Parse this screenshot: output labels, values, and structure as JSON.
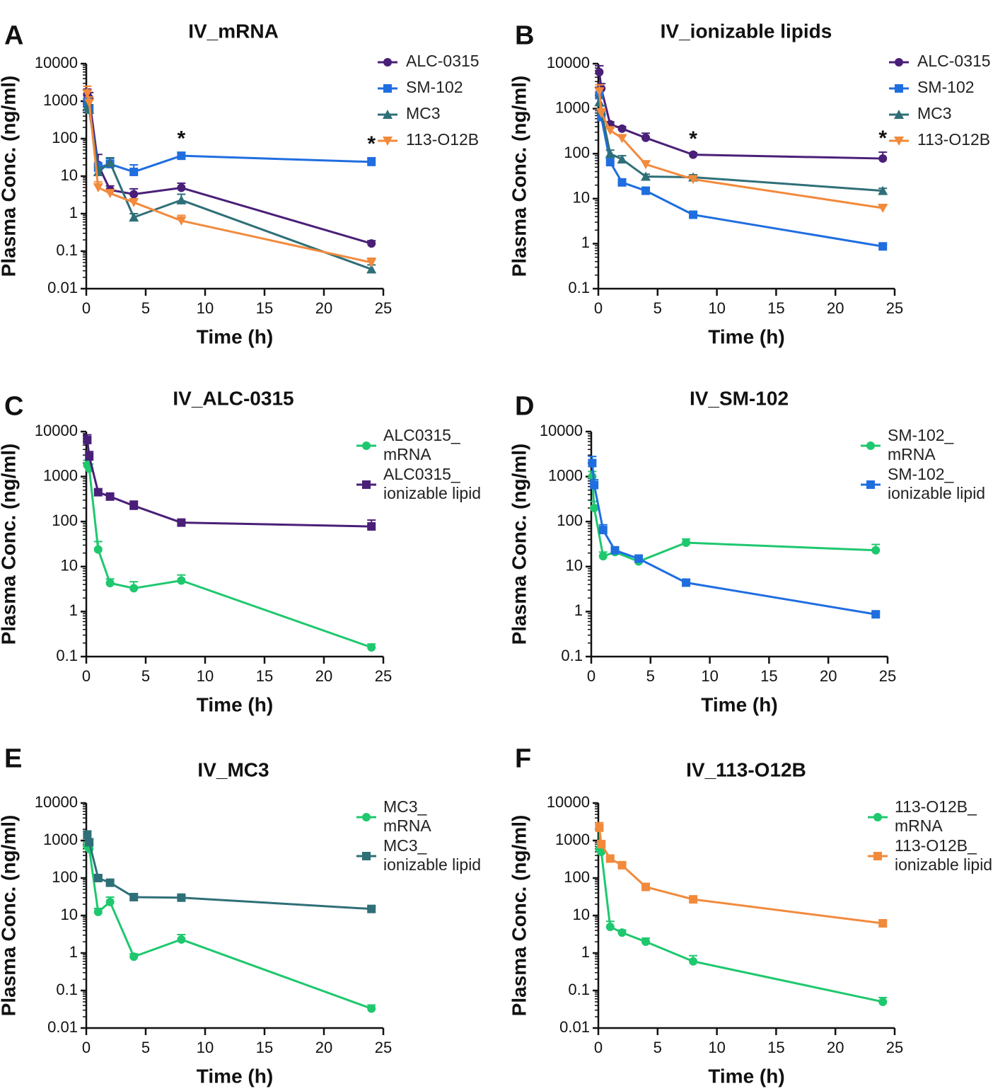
{
  "chart_data": [
    {
      "type": "line",
      "panel": "A",
      "title": "IV_mRNA",
      "xlabel": "Time (h)",
      "ylabel": "Plasma Conc. (ng/ml)",
      "yscale": "log",
      "xlim": [
        0,
        25
      ],
      "ylim": [
        0.01,
        10000
      ],
      "xticks": [
        "0",
        "5",
        "10",
        "15",
        "20",
        "25"
      ],
      "yticks": [
        "0.01",
        "0.1",
        "1",
        "10",
        "100",
        "1000",
        "10000"
      ],
      "annotations": [
        {
          "text": "*",
          "x": 8
        },
        {
          "text": "*",
          "x": 24
        }
      ],
      "series": [
        {
          "name": "ALC-0315",
          "color": "#4a1f78",
          "marker": "circle",
          "x": [
            0.083,
            0.25,
            1,
            2,
            4,
            8,
            24
          ],
          "values": [
            1500,
            1200,
            20,
            4.3,
            3.3,
            4.9,
            0.16
          ],
          "err": [
            600,
            500,
            18,
            1.2,
            1.3,
            1.6,
            0.03
          ]
        },
        {
          "name": "SM-102",
          "color": "#1f6ee0",
          "marker": "square",
          "x": [
            0.083,
            0.25,
            1,
            2,
            4,
            8,
            24
          ],
          "values": [
            900,
            600,
            17,
            21,
            13,
            35,
            24
          ],
          "err": [
            300,
            200,
            6,
            8,
            7,
            8,
            7
          ]
        },
        {
          "name": "MC3",
          "color": "#2f6f78",
          "marker": "triangle",
          "x": [
            0.083,
            0.25,
            1,
            2,
            4,
            8,
            24
          ],
          "values": [
            700,
            600,
            13,
            23,
            0.8,
            2.3,
            0.033
          ],
          "err": [
            200,
            200,
            4,
            8,
            0.2,
            1.0,
            0.01
          ]
        },
        {
          "name": "113-O12B",
          "color": "#f28a3c",
          "marker": "triangle-down",
          "x": [
            0.083,
            0.25,
            1,
            2,
            4,
            8,
            24
          ],
          "values": [
            1600,
            900,
            5,
            3.5,
            2,
            0.65,
            0.05
          ],
          "err": [
            900,
            400,
            2,
            0.8,
            0.5,
            0.25,
            0.015
          ]
        }
      ]
    },
    {
      "type": "line",
      "panel": "B",
      "title": "IV_ionizable lipids",
      "xlabel": "Time (h)",
      "ylabel": "Plasma Conc. (ng/ml)",
      "yscale": "log",
      "xlim": [
        0,
        25
      ],
      "ylim": [
        0.1,
        10000
      ],
      "xticks": [
        "0",
        "5",
        "10",
        "15",
        "20",
        "25"
      ],
      "yticks": [
        "0.1",
        "1",
        "10",
        "100",
        "1000",
        "10000"
      ],
      "annotations": [
        {
          "text": "*",
          "x": 8
        },
        {
          "text": "*",
          "x": 24
        }
      ],
      "series": [
        {
          "name": "ALC-0315",
          "color": "#4a1f78",
          "marker": "circle",
          "x": [
            0.083,
            0.25,
            1,
            2,
            4,
            8,
            24
          ],
          "values": [
            6500,
            2800,
            450,
            360,
            225,
            95,
            78
          ],
          "err": [
            2500,
            800,
            60,
            40,
            60,
            10,
            30
          ]
        },
        {
          "name": "SM-102",
          "color": "#1f6ee0",
          "marker": "square",
          "x": [
            0.083,
            0.25,
            1,
            2,
            4,
            8,
            24
          ],
          "values": [
            2000,
            650,
            65,
            23,
            15,
            4.4,
            0.87
          ],
          "err": [
            800,
            200,
            20,
            4,
            3,
            0.6,
            0.1
          ]
        },
        {
          "name": "MC3",
          "color": "#2f6f78",
          "marker": "triangle",
          "x": [
            0.083,
            0.25,
            1,
            2,
            4,
            8,
            24
          ],
          "values": [
            1400,
            900,
            100,
            75,
            31,
            30,
            15
          ],
          "err": [
            400,
            250,
            20,
            15,
            4,
            4,
            2
          ]
        },
        {
          "name": "113-O12B",
          "color": "#f28a3c",
          "marker": "triangle-down",
          "x": [
            0.083,
            0.25,
            1,
            2,
            4,
            8,
            24
          ],
          "values": [
            2400,
            800,
            330,
            220,
            58,
            27,
            6.2
          ],
          "err": [
            1000,
            200,
            40,
            30,
            8,
            4,
            0.8
          ]
        }
      ]
    },
    {
      "type": "line",
      "panel": "C",
      "title": "IV_ALC-0315",
      "xlabel": "Time (h)",
      "ylabel": "Plasma Conc. (ng/ml)",
      "yscale": "log",
      "xlim": [
        0,
        25
      ],
      "ylim": [
        0.1,
        10000
      ],
      "xticks": [
        "0",
        "5",
        "10",
        "15",
        "20",
        "25"
      ],
      "yticks": [
        "0.1",
        "1",
        "10",
        "100",
        "1000",
        "10000"
      ],
      "annotations": [],
      "series": [
        {
          "name": "ALC0315_ mRNA",
          "legend_lines": [
            "ALC0315_",
            "mRNA"
          ],
          "color": "#1ec86e",
          "marker": "circle",
          "x": [
            0.083,
            0.25,
            1,
            2,
            4,
            8,
            24
          ],
          "values": [
            1800,
            1500,
            24,
            4.3,
            3.3,
            4.9,
            0.16
          ],
          "err": [
            500,
            400,
            12,
            1.0,
            1.3,
            1.6,
            0.03
          ]
        },
        {
          "name": "ALC0315_ ionizable lipid",
          "legend_lines": [
            "ALC0315_",
            "ionizable lipid"
          ],
          "color": "#4a1f78",
          "marker": "square",
          "x": [
            0.083,
            0.25,
            1,
            2,
            4,
            8,
            24
          ],
          "values": [
            6500,
            2800,
            450,
            360,
            225,
            95,
            78
          ],
          "err": [
            2000,
            800,
            60,
            40,
            60,
            10,
            30
          ]
        }
      ]
    },
    {
      "type": "line",
      "panel": "D",
      "title": "IV_SM-102",
      "xlabel": "Time (h)",
      "ylabel": "Plasma Conc. (ng/ml)",
      "yscale": "log",
      "xlim": [
        0,
        25
      ],
      "ylim": [
        0.1,
        10000
      ],
      "xticks": [
        "0",
        "5",
        "10",
        "15",
        "20",
        "25"
      ],
      "yticks": [
        "0.1",
        "1",
        "10",
        "100",
        "1000",
        "10000"
      ],
      "annotations": [],
      "series": [
        {
          "name": "SM-102_ mRNA",
          "legend_lines": [
            "SM-102_",
            "mRNA"
          ],
          "color": "#1ec86e",
          "marker": "circle",
          "x": [
            0.083,
            0.25,
            1,
            2,
            4,
            8,
            24
          ],
          "values": [
            1000,
            200,
            17,
            21,
            13,
            34,
            23
          ],
          "err": [
            300,
            80,
            4,
            5,
            3,
            7,
            8
          ]
        },
        {
          "name": "SM-102_ ionizable lipid",
          "legend_lines": [
            "SM-102_",
            "ionizable lipid"
          ],
          "color": "#1f6ee0",
          "marker": "square",
          "x": [
            0.083,
            0.25,
            1,
            2,
            4,
            8,
            24
          ],
          "values": [
            2000,
            650,
            65,
            23,
            15,
            4.4,
            0.87
          ],
          "err": [
            800,
            200,
            20,
            4,
            3,
            0.6,
            0.1
          ]
        }
      ]
    },
    {
      "type": "line",
      "panel": "E",
      "title": "IV_MC3",
      "xlabel": "Time (h)",
      "ylabel": "Plasma Conc. (ng/ml)",
      "yscale": "log",
      "xlim": [
        0,
        25
      ],
      "ylim": [
        0.01,
        10000
      ],
      "xticks": [
        "0",
        "5",
        "10",
        "15",
        "20",
        "25"
      ],
      "yticks": [
        "0.01",
        "0.1",
        "1",
        "10",
        "100",
        "1000",
        "10000"
      ],
      "annotations": [],
      "series": [
        {
          "name": "MC3_ mRNA",
          "legend_lines": [
            "MC3_",
            "mRNA"
          ],
          "color": "#1ec86e",
          "marker": "circle",
          "x": [
            0.083,
            0.25,
            1,
            2,
            4,
            8,
            24
          ],
          "values": [
            700,
            600,
            12.5,
            23,
            0.8,
            2.3,
            0.033
          ],
          "err": [
            200,
            150,
            3,
            8,
            0.15,
            0.8,
            0.008
          ]
        },
        {
          "name": "MC3_ ionizable lipid",
          "legend_lines": [
            "MC3_",
            "ionizable lipid"
          ],
          "color": "#2f6f78",
          "marker": "square",
          "x": [
            0.083,
            0.25,
            1,
            2,
            4,
            8,
            24
          ],
          "values": [
            1400,
            900,
            100,
            75,
            31,
            30,
            15
          ],
          "err": [
            400,
            200,
            15,
            10,
            4,
            4,
            2
          ]
        }
      ]
    },
    {
      "type": "line",
      "panel": "F",
      "title": "IV_113-O12B",
      "xlabel": "Time (h)",
      "ylabel": "Plasma Conc. (ng/ml)",
      "yscale": "log",
      "xlim": [
        0,
        25
      ],
      "ylim": [
        0.01,
        10000
      ],
      "xticks": [
        "0",
        "5",
        "10",
        "15",
        "20",
        "25"
      ],
      "yticks": [
        "0.01",
        "0.1",
        "1",
        "10",
        "100",
        "1000",
        "10000"
      ],
      "annotations": [],
      "series": [
        {
          "name": "113-O12B_ mRNA",
          "legend_lines": [
            "113-O12B_",
            "mRNA"
          ],
          "color": "#1ec86e",
          "marker": "circle",
          "x": [
            0.083,
            0.25,
            1,
            2,
            4,
            8,
            24
          ],
          "values": [
            600,
            500,
            5,
            3.5,
            2,
            0.6,
            0.05
          ],
          "err": [
            1400,
            300,
            2,
            0.6,
            0.5,
            0.25,
            0.015
          ]
        },
        {
          "name": "113-O12B_ ionizable lipid",
          "legend_lines": [
            "113-O12B_",
            "ionizable lipid"
          ],
          "color": "#f28a3c",
          "marker": "square",
          "x": [
            0.083,
            0.25,
            1,
            2,
            4,
            8,
            24
          ],
          "values": [
            2200,
            800,
            330,
            220,
            58,
            27,
            6.2
          ],
          "err": [
            800,
            200,
            40,
            30,
            10,
            4,
            0.8
          ]
        }
      ]
    }
  ]
}
